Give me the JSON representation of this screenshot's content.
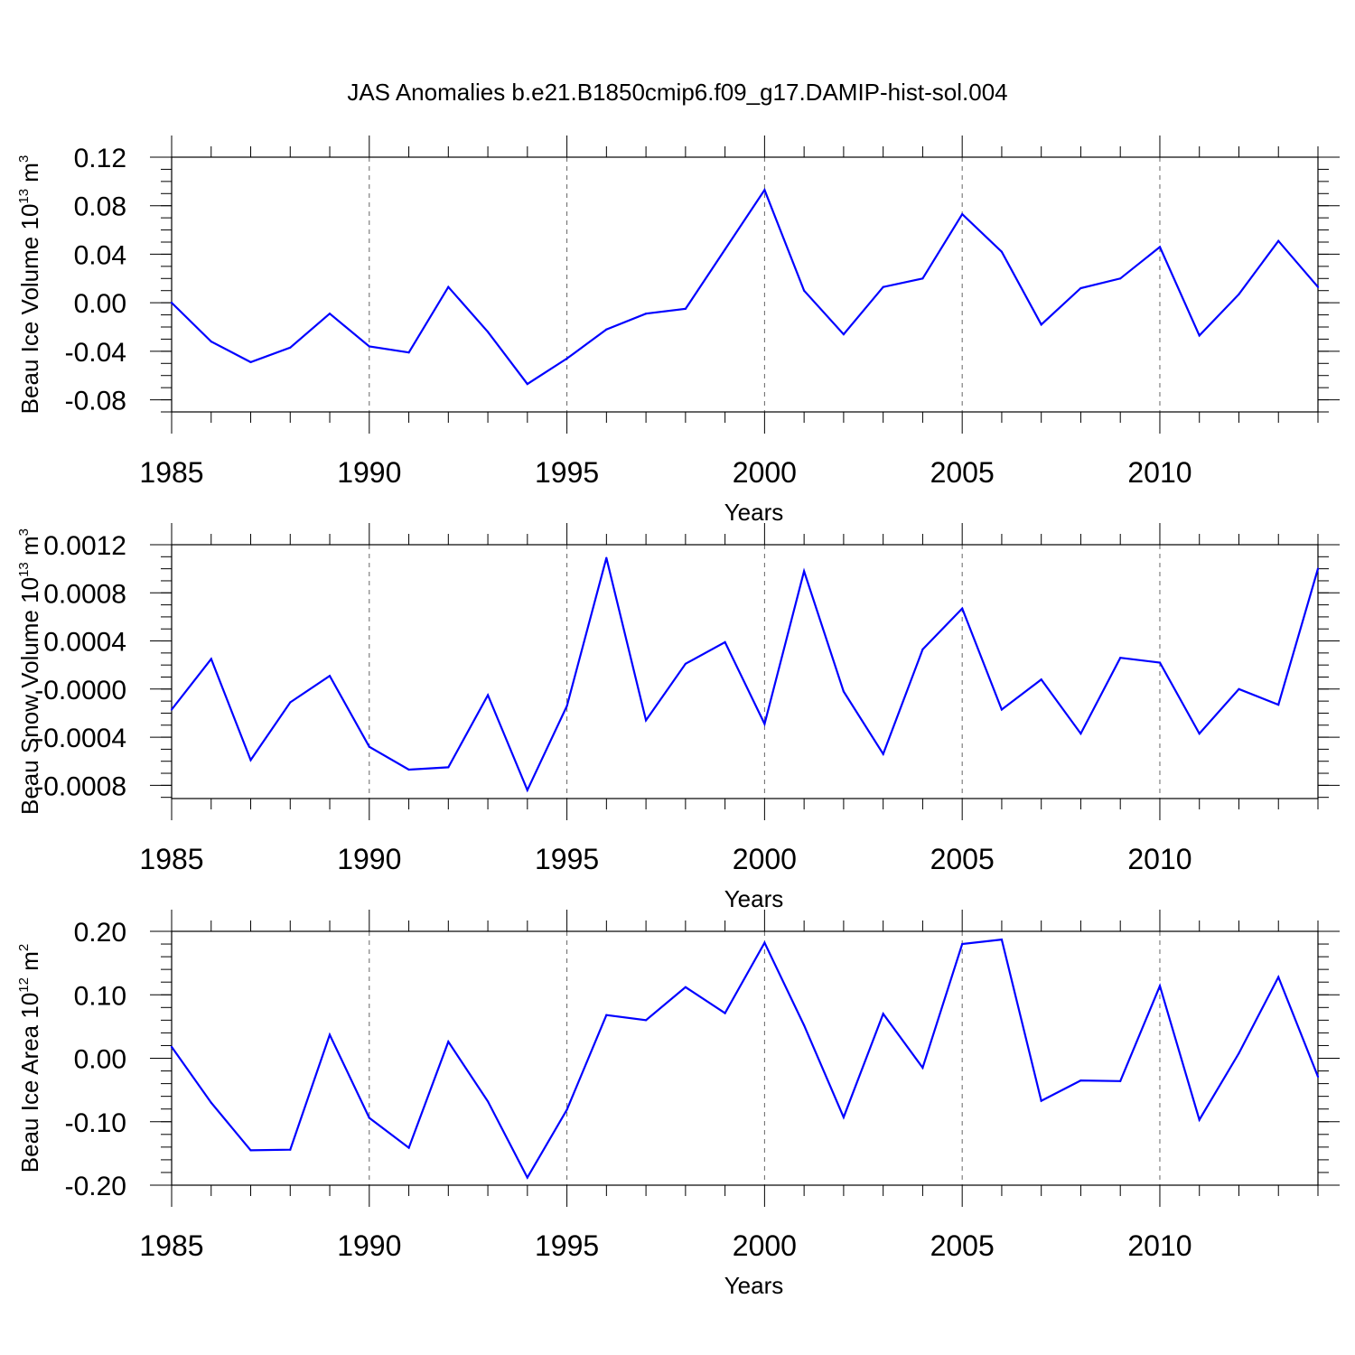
{
  "title": "JAS Anomalies b.e21.B1850cmip6.f09_g17.DAMIP-hist-sol.004",
  "chart_data": [
    {
      "type": "line",
      "name": "ice-volume",
      "xlabel": "Years",
      "ylabel": {
        "main": "Beau Ice Volume 10",
        "sup": "13",
        "unit": " m",
        "unit_sup": "3"
      },
      "x": [
        1985,
        1986,
        1987,
        1988,
        1989,
        1990,
        1991,
        1992,
        1993,
        1994,
        1995,
        1996,
        1997,
        1998,
        1999,
        2000,
        2001,
        2002,
        2003,
        2004,
        2005,
        2006,
        2007,
        2008,
        2009,
        2010,
        2011,
        2012,
        2013,
        2014
      ],
      "values": [
        0.0,
        -0.032,
        -0.049,
        -0.037,
        -0.009,
        -0.036,
        -0.041,
        0.013,
        -0.024,
        -0.067,
        -0.046,
        -0.022,
        -0.009,
        -0.005,
        0.044,
        0.093,
        0.01,
        -0.026,
        0.013,
        0.02,
        0.073,
        0.042,
        -0.018,
        0.012,
        0.02,
        0.046,
        -0.027,
        0.007,
        0.051,
        0.013
      ],
      "xlim": [
        1985,
        2014
      ],
      "ylim": [
        -0.09,
        0.12
      ],
      "yticks": [
        -0.08,
        -0.04,
        0.0,
        0.04,
        0.08,
        0.12
      ],
      "ytick_labels": [
        "-0.08",
        "-0.04",
        "0.00",
        "0.04",
        "0.08",
        "0.12"
      ],
      "yminor_step": 0.01,
      "line_color": "#0000ff"
    },
    {
      "type": "line",
      "name": "snow-volume",
      "xlabel": "Years",
      "ylabel": {
        "main": "Beau Snow Volume 10",
        "sup": "13",
        "unit": " m",
        "unit_sup": "3"
      },
      "x": [
        1985,
        1986,
        1987,
        1988,
        1989,
        1990,
        1991,
        1992,
        1993,
        1994,
        1995,
        1996,
        1997,
        1998,
        1999,
        2000,
        2001,
        2002,
        2003,
        2004,
        2005,
        2006,
        2007,
        2008,
        2009,
        2010,
        2011,
        2012,
        2013,
        2014
      ],
      "values": [
        -0.00017,
        0.00025,
        -0.00059,
        -0.00011,
        0.00011,
        -0.00048,
        -0.00067,
        -0.00065,
        -5e-05,
        -0.00084,
        -0.00014,
        0.00109,
        -0.00026,
        0.00021,
        0.00039,
        -0.00029,
        0.00098,
        -2e-05,
        -0.00054,
        0.00033,
        0.00067,
        -0.00017,
        8e-05,
        -0.00037,
        0.00026,
        0.00022,
        -0.00037,
        0.0,
        -0.00013,
        0.001
      ],
      "xlim": [
        1985,
        2014
      ],
      "ylim": [
        -0.00091,
        0.0012
      ],
      "yticks": [
        -0.0008,
        -0.0004,
        0.0,
        0.0004,
        0.0008,
        0.0012
      ],
      "ytick_labels": [
        "-0.0008",
        "-0.0004",
        "-0.0000",
        "0.0004",
        "0.0008",
        "0.0012"
      ],
      "yminor_step": 0.0001,
      "line_color": "#0000ff"
    },
    {
      "type": "line",
      "name": "ice-area",
      "xlabel": "Years",
      "ylabel": {
        "main": "Beau Ice Area 10",
        "sup": "12",
        "unit": " m",
        "unit_sup": "2"
      },
      "x": [
        1985,
        1986,
        1987,
        1988,
        1989,
        1990,
        1991,
        1992,
        1993,
        1994,
        1995,
        1996,
        1997,
        1998,
        1999,
        2000,
        2001,
        2002,
        2003,
        2004,
        2005,
        2006,
        2007,
        2008,
        2009,
        2010,
        2011,
        2012,
        2013,
        2014
      ],
      "values": [
        0.018,
        -0.07,
        -0.145,
        -0.144,
        0.037,
        -0.094,
        -0.141,
        0.026,
        -0.068,
        -0.188,
        -0.081,
        0.068,
        0.06,
        0.112,
        0.071,
        0.182,
        0.052,
        -0.093,
        0.07,
        -0.015,
        0.18,
        0.187,
        -0.067,
        -0.035,
        -0.036,
        0.114,
        -0.097,
        0.008,
        0.128,
        -0.029
      ],
      "xlim": [
        1985,
        2014
      ],
      "ylim": [
        -0.2,
        0.2
      ],
      "yticks": [
        -0.2,
        -0.1,
        0.0,
        0.1,
        0.2
      ],
      "ytick_labels": [
        "-0.20",
        "-0.10",
        "0.00",
        "0.10",
        "0.20"
      ],
      "yminor_step": 0.02,
      "line_color": "#0000ff"
    }
  ],
  "xticks": [
    1985,
    1990,
    1995,
    2000,
    2005,
    2010
  ],
  "xtick_labels": [
    "1985",
    "1990",
    "1995",
    "2000",
    "2005",
    "2010"
  ],
  "grid_years": [
    1990,
    1995,
    2000,
    2005,
    2010
  ]
}
